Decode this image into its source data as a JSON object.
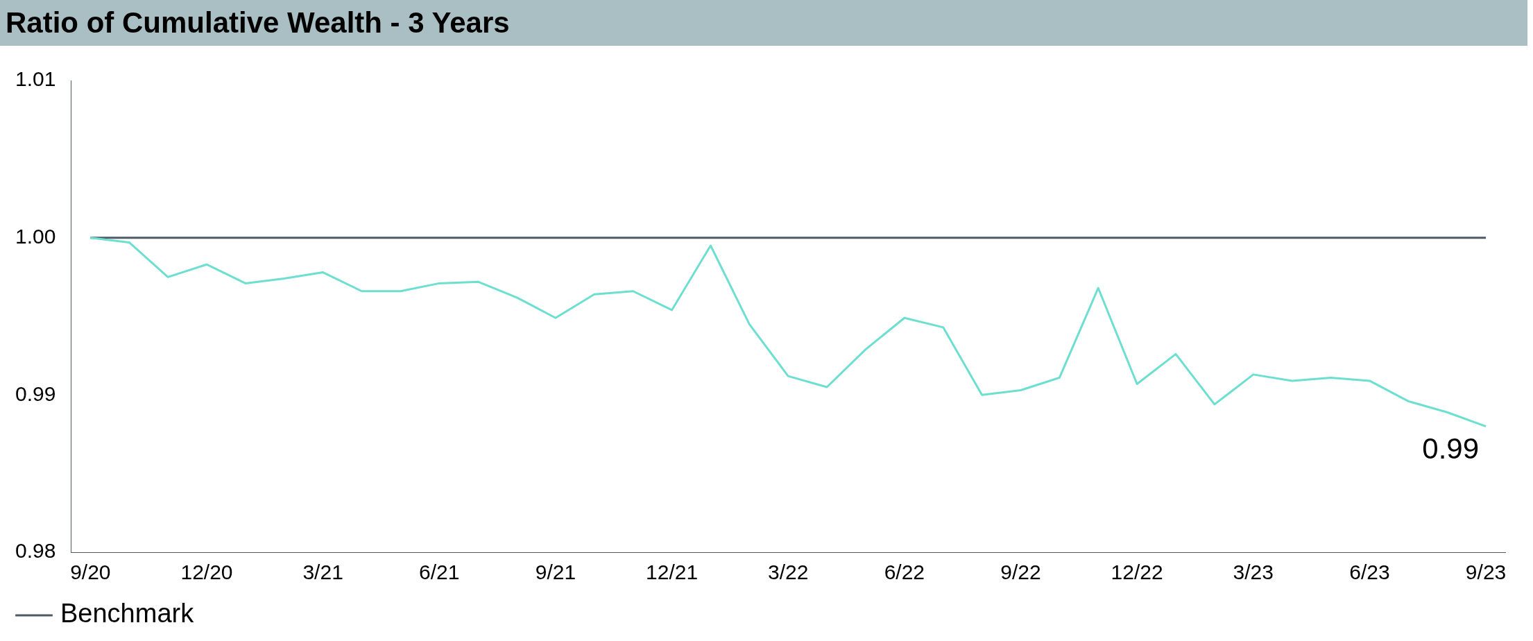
{
  "chart_data": {
    "type": "line",
    "title": "Ratio of Cumulative Wealth - 3 Years",
    "categories": [
      "9/20",
      null,
      null,
      "12/20",
      null,
      null,
      "3/21",
      null,
      null,
      "6/21",
      null,
      null,
      "9/21",
      null,
      null,
      "12/21",
      null,
      null,
      "3/22",
      null,
      null,
      "6/22",
      null,
      null,
      "9/22",
      null,
      null,
      "12/22",
      null,
      null,
      "3/23",
      null,
      null,
      "6/23",
      null,
      null,
      "9/23"
    ],
    "series": [
      {
        "color": "#6ddfd0",
        "values": [
          1.0,
          0.9997,
          0.9975,
          0.9983,
          0.9971,
          0.9974,
          0.9978,
          0.9966,
          0.9966,
          0.9971,
          0.9972,
          0.9962,
          0.9949,
          0.9964,
          0.9966,
          0.9954,
          0.9995,
          0.9945,
          0.9912,
          0.9905,
          0.9929,
          0.9949,
          0.9943,
          0.99,
          0.9903,
          0.9911,
          0.9968,
          0.9907,
          0.9926,
          0.9894,
          0.9913,
          0.9909,
          0.9911,
          0.9909,
          0.9896,
          0.9889,
          0.988
        ]
      },
      {
        "name": "Benchmark",
        "color": "#4d5a66",
        "values": [
          1,
          1,
          1,
          1,
          1,
          1,
          1,
          1,
          1,
          1,
          1,
          1,
          1,
          1,
          1,
          1,
          1,
          1,
          1,
          1,
          1,
          1,
          1,
          1,
          1,
          1,
          1,
          1,
          1,
          1,
          1,
          1,
          1,
          1,
          1,
          1,
          1
        ]
      }
    ],
    "ylim": [
      0.98,
      1.01
    ],
    "yticks": [
      {
        "value": 0.98,
        "label": "0.98"
      },
      {
        "value": 0.99,
        "label": "0.99"
      },
      {
        "value": 1.0,
        "label": "1.00"
      },
      {
        "value": 1.01,
        "label": "1.01"
      }
    ],
    "annotations": [
      {
        "text": "0.99",
        "x": "9/23",
        "y": 0.988
      }
    ],
    "grid": false,
    "legend": "bottom",
    "marker": "none",
    "line_style": "solid"
  }
}
